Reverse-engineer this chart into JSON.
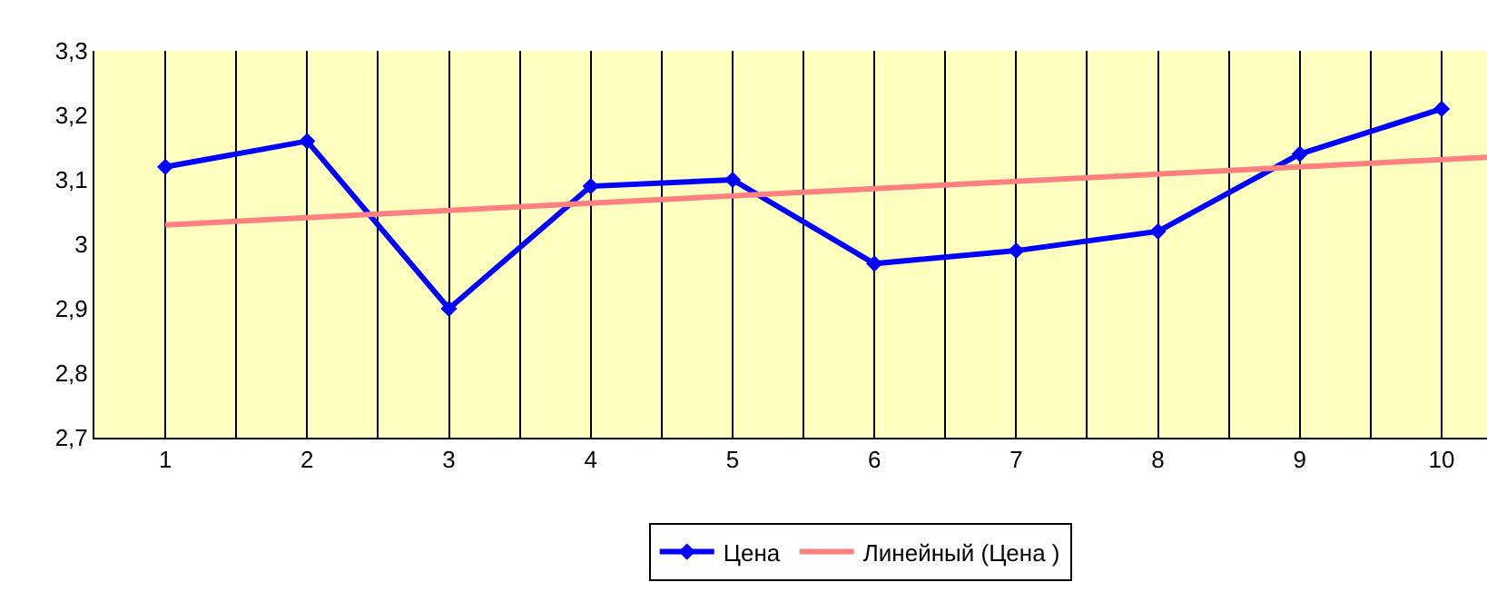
{
  "chart_data": {
    "type": "line",
    "x": [
      1,
      2,
      3,
      4,
      5,
      6,
      7,
      8,
      9,
      10
    ],
    "series": [
      {
        "name": "Цена",
        "color": "#0000ff",
        "marker": "diamond",
        "line_style": "solid",
        "values": [
          3.12,
          3.16,
          2.9,
          3.09,
          3.1,
          2.97,
          2.99,
          3.02,
          3.14,
          3.21
        ]
      },
      {
        "name": "Линейный (Цена )",
        "color": "#ff8080",
        "marker": "none",
        "line_style": "solid",
        "x": [
          1,
          10.32
        ],
        "values": [
          3.03,
          3.135
        ]
      }
    ],
    "xlim": [
      0.5,
      10.32
    ],
    "xticks": [
      1,
      {
        "value": 1.5,
        "label": null
      },
      2,
      {
        "value": 2.5,
        "label": null
      },
      3,
      {
        "value": 3.5,
        "label": null
      },
      4,
      {
        "value": 4.5,
        "label": null
      },
      5,
      {
        "value": 5.5,
        "label": null
      },
      6,
      {
        "value": 6.5,
        "label": null
      },
      7,
      {
        "value": 7.5,
        "label": null
      },
      8,
      {
        "value": 8.5,
        "label": null
      },
      9,
      {
        "value": 9.5,
        "label": null
      },
      10
    ],
    "ylim": [
      2.7,
      3.3
    ],
    "yticks": [
      {
        "value": 2.7,
        "label": "2,7"
      },
      {
        "value": 2.8,
        "label": "2,8"
      },
      {
        "value": 2.9,
        "label": "2,9"
      },
      3,
      {
        "value": 3.1,
        "label": "3,1"
      },
      {
        "value": 3.2,
        "label": "3,2"
      },
      {
        "value": 3.3,
        "label": "3,3"
      }
    ],
    "grid": "x",
    "legend": "bottom"
  }
}
